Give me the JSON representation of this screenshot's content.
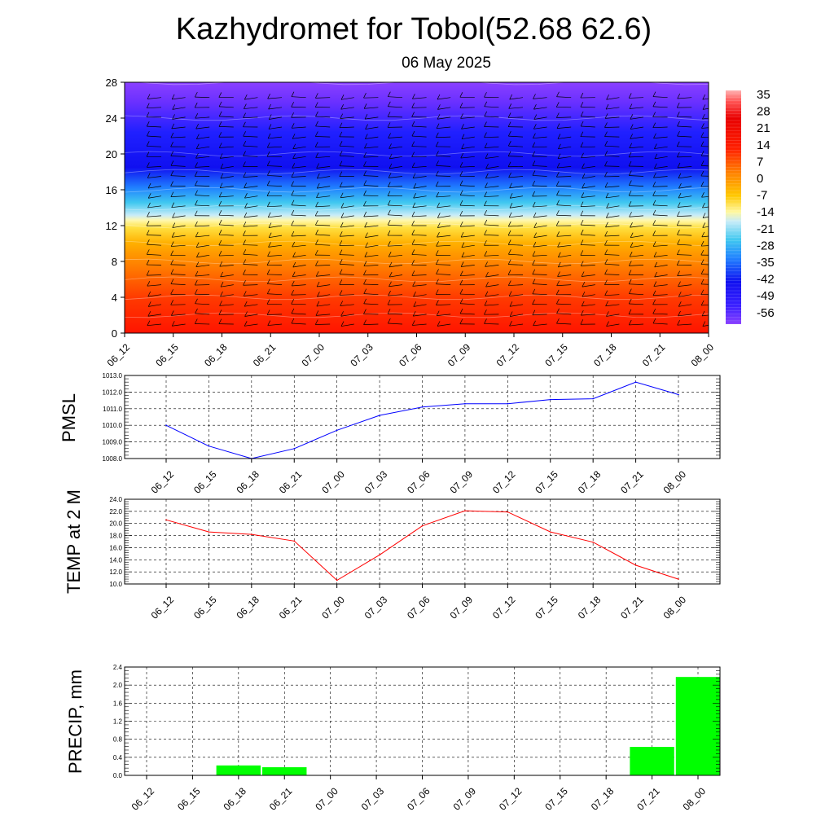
{
  "header": {
    "title": "Kazhydromet for Tobol(52.68 62.6)",
    "subtitle": "06 May 2025"
  },
  "chart_data": [
    {
      "type": "heatmap",
      "title": "",
      "x_ticks": [
        "06_12",
        "06_15",
        "06_18",
        "06_21",
        "07_00",
        "07_03",
        "07_06",
        "07_09",
        "07_12",
        "07_15",
        "07_18",
        "07_21",
        "08_00"
      ],
      "y_ticks": [
        0,
        4,
        8,
        12,
        16,
        20,
        24,
        28
      ],
      "ylim": [
        0,
        28
      ],
      "colorbar_labels": [
        "35",
        "28",
        "21",
        "14",
        "7",
        "0",
        "-7",
        "-14",
        "-21",
        "-28",
        "-35",
        "-42",
        "-49",
        "-56"
      ],
      "levels": [
        {
          "height": 0,
          "value": 18
        },
        {
          "height": 2,
          "value": 14
        },
        {
          "height": 4,
          "value": 8
        },
        {
          "height": 6,
          "value": 1
        },
        {
          "height": 8,
          "value": -6
        },
        {
          "height": 10,
          "value": -14
        },
        {
          "height": 12,
          "value": -20
        },
        {
          "height": 14,
          "value": -32
        },
        {
          "height": 16,
          "value": -45
        },
        {
          "height": 18,
          "value": -52
        },
        {
          "height": 20,
          "value": -56
        },
        {
          "height": 24,
          "value": -58
        },
        {
          "height": 28,
          "value": -60
        }
      ],
      "colors": {
        "hot": "#ff1a00",
        "orange": "#ff9a00",
        "yellow": "#ffe640",
        "cyan": "#30c8f0",
        "blue": "#1010f0",
        "violet": "#8a40ff"
      }
    },
    {
      "type": "line",
      "ylabel": "PMSL",
      "categories": [
        "06_12",
        "06_15",
        "06_18",
        "06_21",
        "07_00",
        "07_03",
        "07_06",
        "07_09",
        "07_12",
        "07_15",
        "07_18",
        "07_21",
        "08_00"
      ],
      "y_ticks": [
        "1008.0",
        "1009.0",
        "1010.0",
        "1011.0",
        "1012.0",
        "1013.0"
      ],
      "ylim": [
        1008,
        1013
      ],
      "series": [
        {
          "values": [
            1010.0,
            1008.75,
            1008.0,
            1008.6,
            1009.7,
            1010.6,
            1011.1,
            1011.3,
            1011.3,
            1011.55,
            1011.6,
            1012.6,
            1011.85
          ],
          "color": "#0000ff"
        }
      ]
    },
    {
      "type": "line",
      "ylabel": "TEMP at 2 M",
      "categories": [
        "06_12",
        "06_15",
        "06_18",
        "06_21",
        "07_00",
        "07_03",
        "07_06",
        "07_09",
        "07_12",
        "07_15",
        "07_18",
        "07_21",
        "08_00"
      ],
      "y_ticks": [
        "10.0",
        "12.0",
        "14.0",
        "16.0",
        "18.0",
        "20.0",
        "22.0",
        "24.0"
      ],
      "ylim": [
        10,
        24
      ],
      "series": [
        {
          "values": [
            20.6,
            18.6,
            18.2,
            17.1,
            10.6,
            14.8,
            19.6,
            22.1,
            21.9,
            18.6,
            16.9,
            13.1,
            10.8
          ],
          "color": "#ff0000"
        }
      ]
    },
    {
      "type": "bar",
      "ylabel": "PRECIP, mm",
      "categories": [
        "06_12",
        "06_15",
        "06_18",
        "06_21",
        "07_00",
        "07_03",
        "07_06",
        "07_09",
        "07_12",
        "07_15",
        "07_18",
        "07_21",
        "08_00"
      ],
      "y_ticks": [
        "0.0",
        "0.4",
        "0.8",
        "1.2",
        "1.6",
        "2.0",
        "2.4"
      ],
      "ylim": [
        0,
        2.4
      ],
      "values": [
        0,
        0,
        0.22,
        0.18,
        0,
        0,
        0,
        0,
        0,
        0,
        0,
        0.63,
        2.18
      ],
      "color": "#00ff00"
    }
  ]
}
